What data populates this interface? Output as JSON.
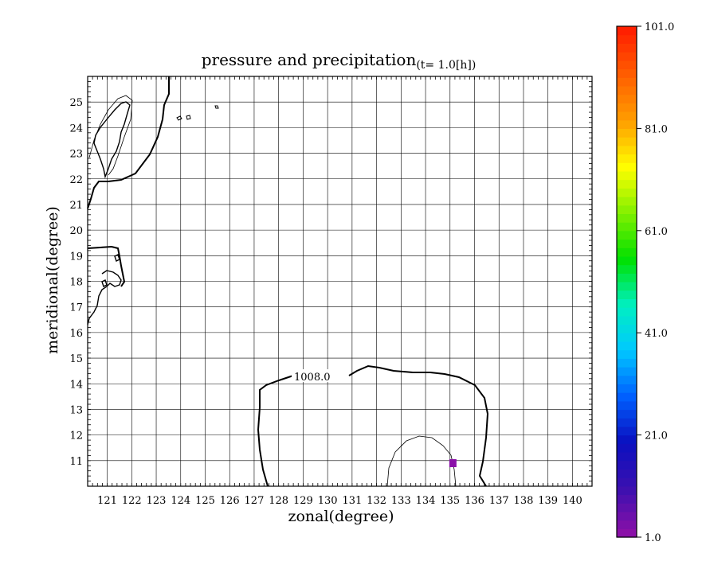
{
  "chart_data": {
    "type": "heatmap",
    "title": "pressure and precipitation",
    "subtitle": "(t=   1.0[h])",
    "xlabel": "zonal(degree)",
    "ylabel": "meridional(degree)",
    "xlim": [
      120.2,
      140.8
    ],
    "ylim": [
      10.0,
      26.0
    ],
    "x_ticks": [
      "121",
      "122",
      "123",
      "124",
      "125",
      "126",
      "127",
      "128",
      "129",
      "130",
      "131",
      "132",
      "133",
      "134",
      "135",
      "136",
      "137",
      "138",
      "139",
      "140"
    ],
    "y_ticks": [
      "11",
      "12",
      "13",
      "14",
      "15",
      "16",
      "17",
      "18",
      "19",
      "20",
      "21",
      "22",
      "23",
      "24",
      "25"
    ],
    "grid": true,
    "colorbar": {
      "min": 1.0,
      "max": 101.0,
      "labels": [
        "101.0",
        "81.0",
        "61.0",
        "41.0",
        "21.0",
        "1.0"
      ],
      "colors": [
        "#8a10a8",
        "#3a10b0",
        "#0a10c0",
        "#0060ff",
        "#00c8ff",
        "#00f0c0",
        "#00e000",
        "#80f000",
        "#ffff00",
        "#ffa000",
        "#ff6000",
        "#ff2000"
      ]
    },
    "contour_labels": [
      {
        "text": "1008.0",
        "lon": 129.1,
        "lat": 14.4
      }
    ],
    "precipitation_cells": [
      {
        "lon": 135.1,
        "lat": 10.9,
        "value": 1.0
      }
    ]
  }
}
